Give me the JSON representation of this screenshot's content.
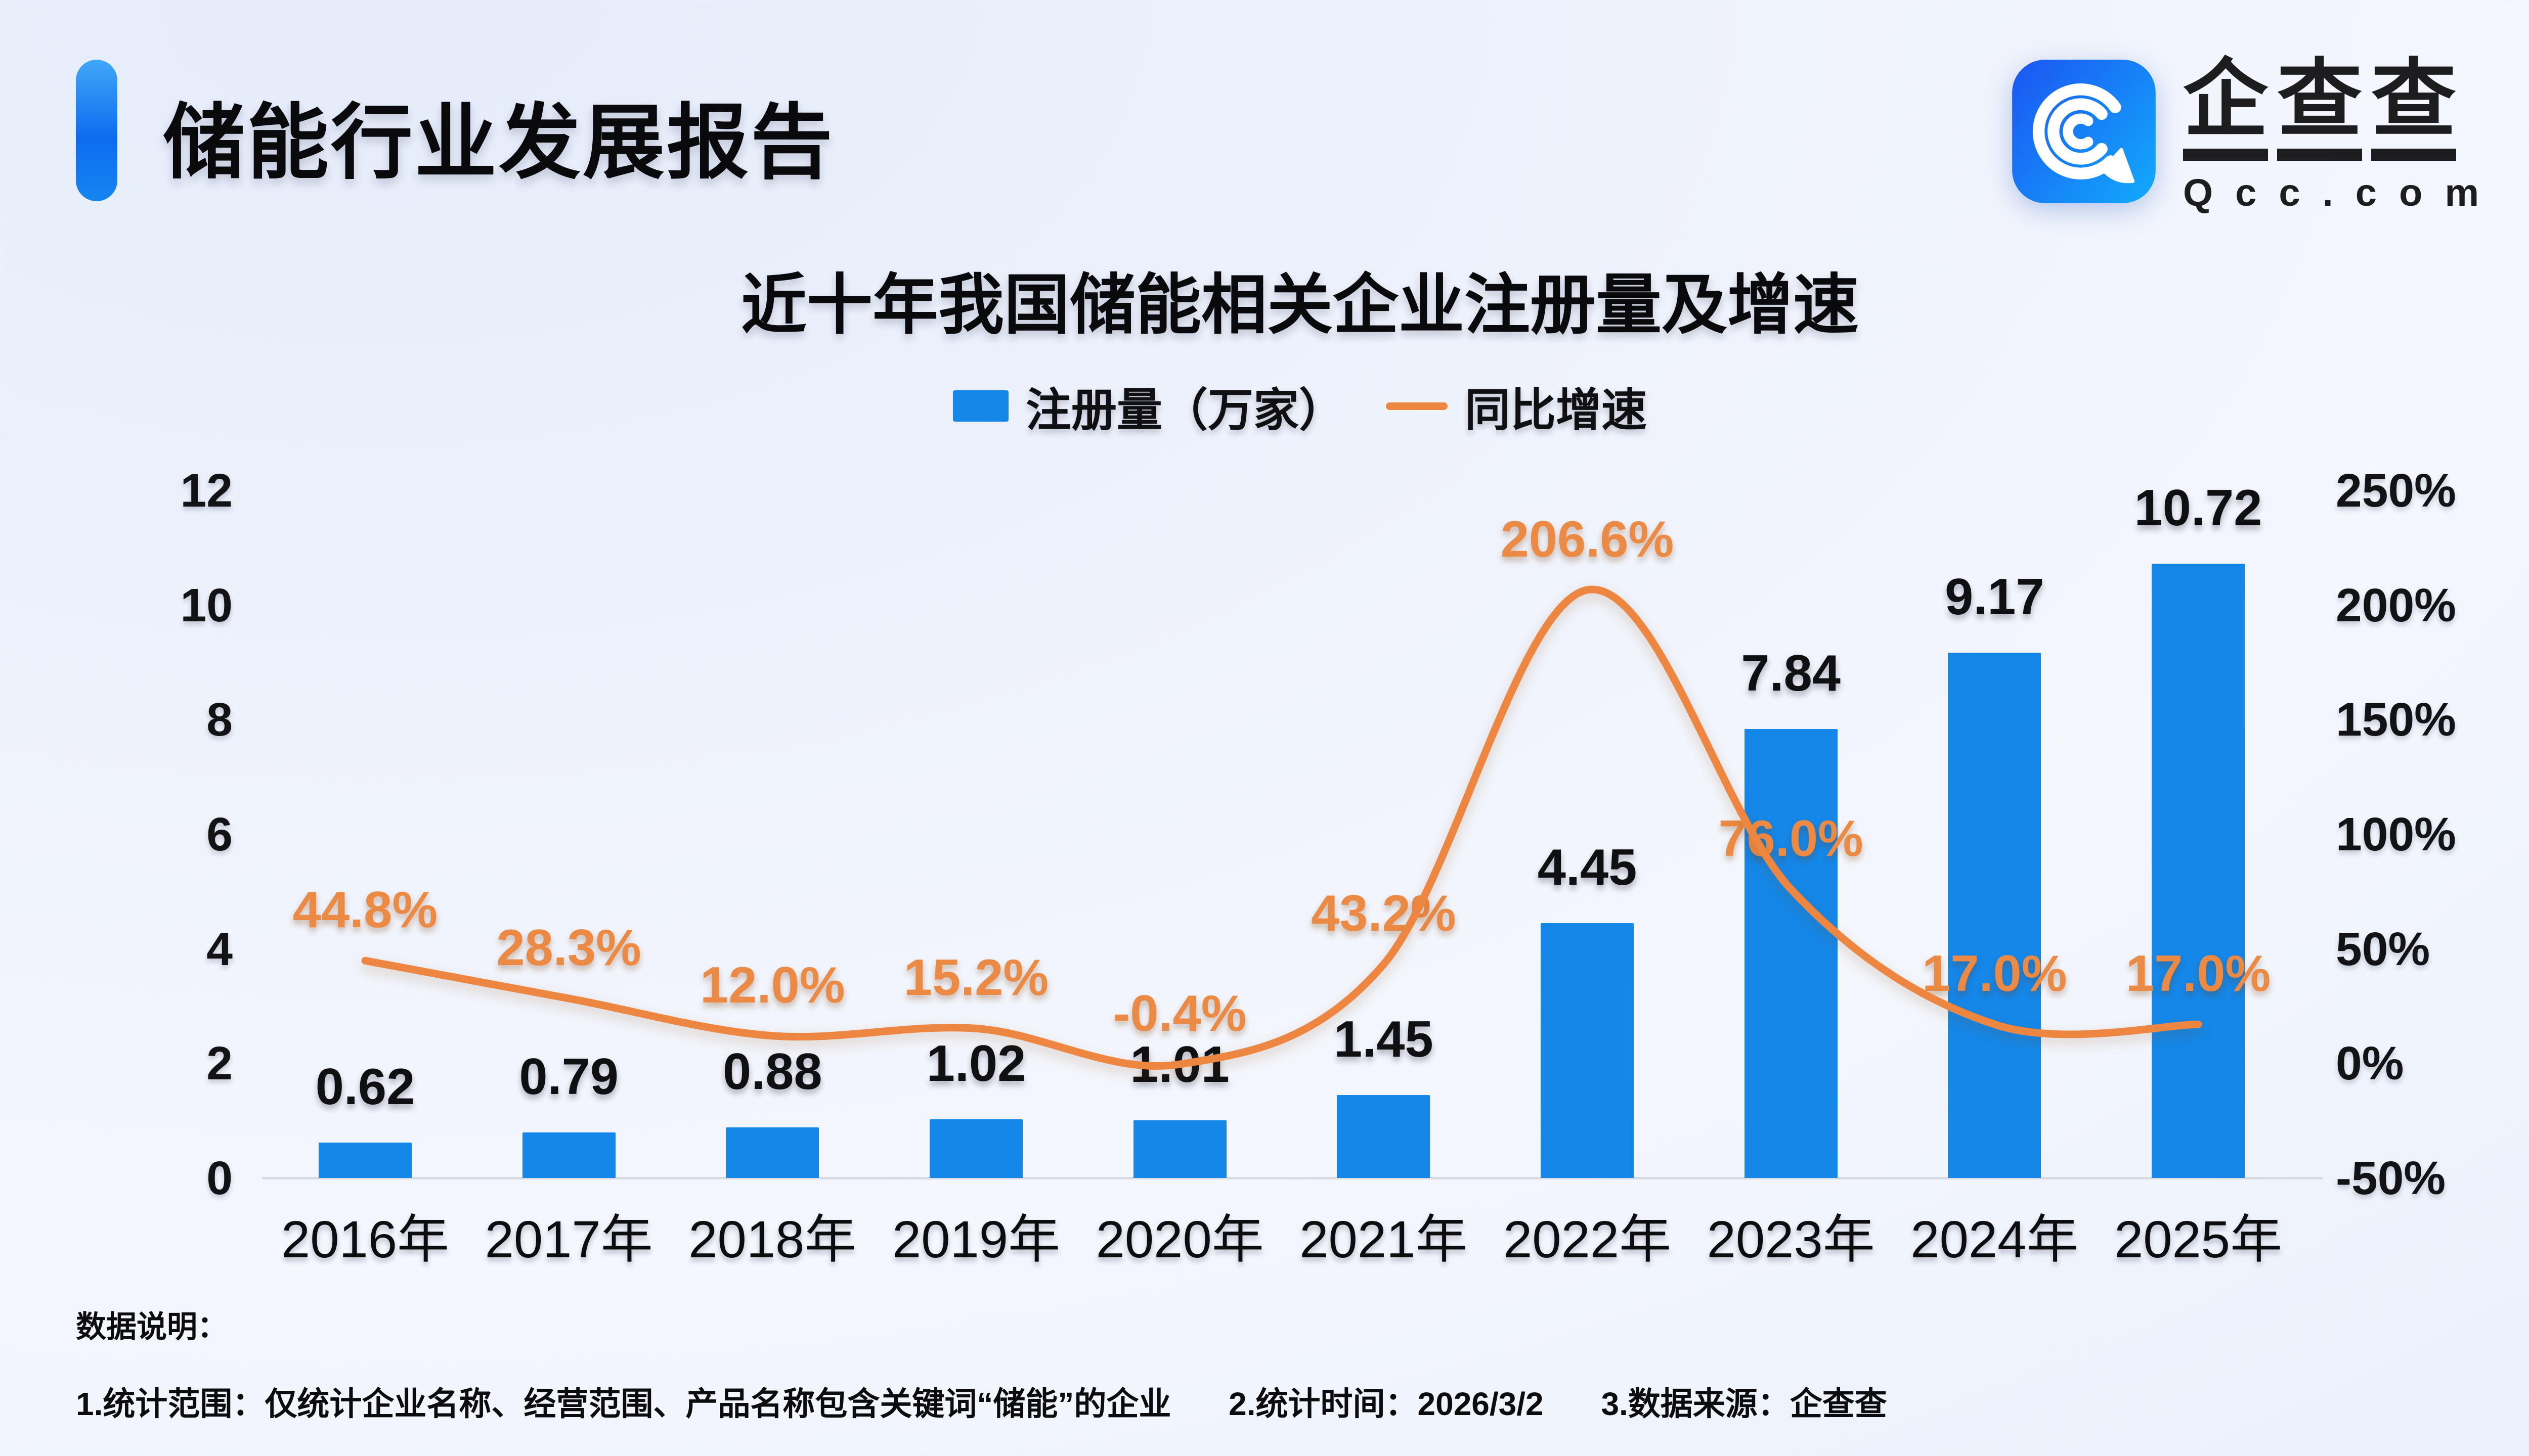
{
  "header": {
    "report_title": "储能行业发展报告",
    "logo": {
      "brand_chars": [
        "企",
        "查",
        "查"
      ],
      "domain": "Qcc.com",
      "icon": "qcc-spiral-q-icon",
      "icon_gradient": [
        "#1b59f3",
        "#12a7fb"
      ]
    }
  },
  "chart_data": {
    "type": "bar+line combo",
    "title": "近十年我国储能相关企业注册量及增速",
    "categories": [
      "2016年",
      "2017年",
      "2018年",
      "2019年",
      "2020年",
      "2021年",
      "2022年",
      "2023年",
      "2024年",
      "2025年"
    ],
    "series": [
      {
        "name": "注册量（万家）",
        "type": "bar",
        "axis": "left",
        "color": "#1487e8",
        "values": [
          0.62,
          0.79,
          0.88,
          1.02,
          1.01,
          1.45,
          4.45,
          7.84,
          9.17,
          10.72
        ],
        "labels": [
          "0.62",
          "0.79",
          "0.88",
          "1.02",
          "1.01",
          "1.45",
          "4.45",
          "7.84",
          "9.17",
          "10.72"
        ]
      },
      {
        "name": "同比增速",
        "type": "line",
        "axis": "right",
        "color": "#ed8640",
        "label_color": "#ea8a45",
        "values": [
          44.8,
          28.3,
          12.0,
          15.2,
          -0.4,
          43.2,
          206.6,
          76.0,
          17.0,
          17.0
        ],
        "labels": [
          "44.8%",
          "28.3%",
          "12.0%",
          "15.2%",
          "-0.4%",
          "43.2%",
          "206.6%",
          "76.0%",
          "17.0%",
          "17.0%"
        ]
      }
    ],
    "left_axis": {
      "range": [
        0,
        12
      ],
      "ticks": [
        "0",
        "2",
        "4",
        "6",
        "8",
        "10",
        "12"
      ]
    },
    "right_axis": {
      "range": [
        -50,
        250
      ],
      "ticks": [
        "-50%",
        "0%",
        "50%",
        "100%",
        "150%",
        "200%",
        "250%"
      ]
    },
    "legend_position": "top-center",
    "grid": false,
    "smooth_line": true
  },
  "footer": {
    "notes_label": "数据说明：",
    "notes": [
      "1.统计范围：仅统计企业名称、经营范围、产品名称包含关键词“储能”的企业",
      "2.统计时间：2026/3/2",
      "3.数据来源：企查查"
    ]
  }
}
